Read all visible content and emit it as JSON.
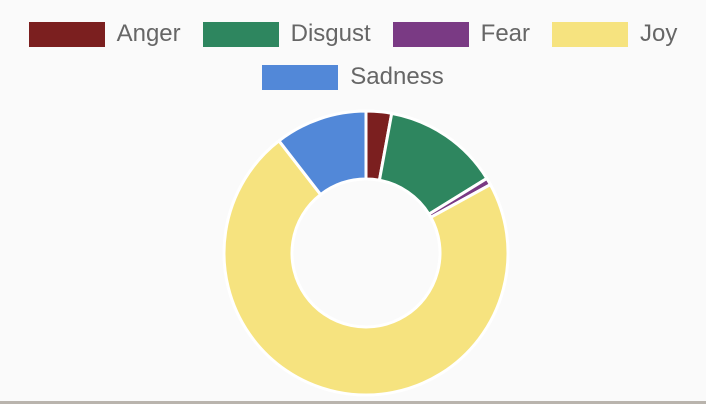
{
  "chart_data": {
    "type": "pie",
    "variant": "doughnut",
    "categories": [
      "Anger",
      "Disgust",
      "Fear",
      "Joy",
      "Sadness"
    ],
    "values": [
      2.9,
      13.3,
      0.8,
      72.5,
      10.5
    ],
    "colors": [
      "#7b1f1f",
      "#2e865f",
      "#7a3a84",
      "#f6e37f",
      "#5288d8"
    ],
    "legend_position": "top",
    "border_color": "#ffffff"
  }
}
